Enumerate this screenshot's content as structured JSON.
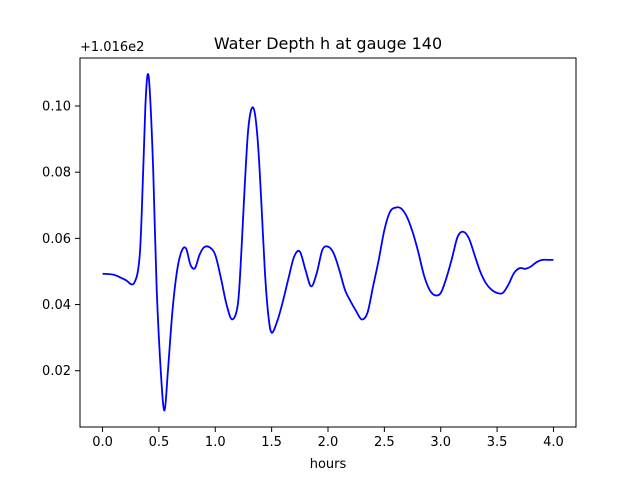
{
  "chart_data": {
    "type": "line",
    "title": "Water Depth h at gauge 140",
    "xlabel": "hours",
    "ylabel": "",
    "y_offset_label": "+1.016e2",
    "xlim": [
      -0.2,
      4.2
    ],
    "ylim": [
      0.003,
      0.1145
    ],
    "xticks": [
      0.0,
      0.5,
      1.0,
      1.5,
      2.0,
      2.5,
      3.0,
      3.5,
      4.0
    ],
    "xtick_labels": [
      "0.0",
      "0.5",
      "1.0",
      "1.5",
      "2.0",
      "2.5",
      "3.0",
      "3.5",
      "4.0"
    ],
    "yticks": [
      0.02,
      0.04,
      0.06,
      0.08,
      0.1
    ],
    "ytick_labels": [
      "0.02",
      "0.04",
      "0.06",
      "0.08",
      "0.10"
    ],
    "grid": false,
    "series": [
      {
        "color": "#0000ff",
        "x": [
          0.0,
          0.1,
          0.2,
          0.28,
          0.33,
          0.36,
          0.38,
          0.4,
          0.42,
          0.45,
          0.48,
          0.52,
          0.55,
          0.58,
          0.62,
          0.66,
          0.7,
          0.74,
          0.78,
          0.82,
          0.86,
          0.9,
          0.95,
          1.0,
          1.05,
          1.1,
          1.15,
          1.2,
          1.23,
          1.26,
          1.29,
          1.32,
          1.35,
          1.38,
          1.41,
          1.44,
          1.47,
          1.5,
          1.55,
          1.6,
          1.65,
          1.7,
          1.75,
          1.8,
          1.85,
          1.9,
          1.95,
          2.0,
          2.05,
          2.1,
          2.15,
          2.2,
          2.25,
          2.3,
          2.35,
          2.4,
          2.45,
          2.5,
          2.55,
          2.6,
          2.65,
          2.7,
          2.75,
          2.8,
          2.85,
          2.9,
          2.95,
          3.0,
          3.05,
          3.1,
          3.15,
          3.2,
          3.25,
          3.3,
          3.35,
          3.4,
          3.45,
          3.5,
          3.55,
          3.6,
          3.65,
          3.7,
          3.75,
          3.8,
          3.85,
          3.9,
          3.95,
          4.0
        ],
        "y": [
          0.0493,
          0.049,
          0.0475,
          0.0465,
          0.055,
          0.08,
          0.1,
          0.1095,
          0.104,
          0.08,
          0.045,
          0.018,
          0.008,
          0.02,
          0.038,
          0.05,
          0.056,
          0.057,
          0.052,
          0.051,
          0.055,
          0.0573,
          0.0573,
          0.055,
          0.048,
          0.04,
          0.0355,
          0.04,
          0.055,
          0.075,
          0.092,
          0.099,
          0.098,
          0.088,
          0.07,
          0.05,
          0.037,
          0.0315,
          0.035,
          0.041,
          0.048,
          0.0545,
          0.056,
          0.0505,
          0.0455,
          0.0495,
          0.0565,
          0.0575,
          0.0555,
          0.0505,
          0.0445,
          0.041,
          0.038,
          0.0355,
          0.0375,
          0.0455,
          0.0535,
          0.0625,
          0.068,
          0.0693,
          0.069,
          0.0665,
          0.062,
          0.056,
          0.049,
          0.0445,
          0.0428,
          0.0435,
          0.048,
          0.054,
          0.0605,
          0.062,
          0.06,
          0.055,
          0.05,
          0.0465,
          0.0445,
          0.0435,
          0.0435,
          0.046,
          0.0495,
          0.051,
          0.0508,
          0.0515,
          0.0528,
          0.0535,
          0.0535,
          0.0535
        ]
      }
    ]
  }
}
